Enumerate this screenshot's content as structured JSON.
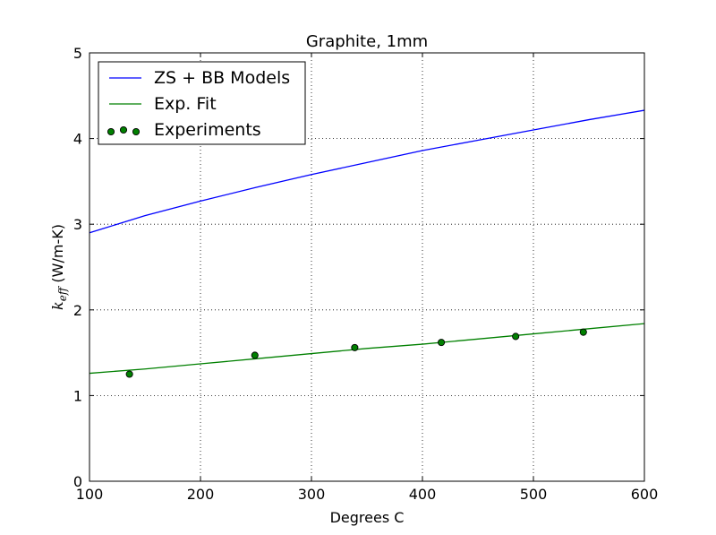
{
  "chart_data": {
    "type": "line",
    "title": "Graphite, 1mm",
    "xlabel": "Degrees C",
    "ylabel_symbol": "k",
    "ylabel_subscript": "eff",
    "ylabel_units": " (W/m-K)",
    "xlim": [
      100,
      600
    ],
    "ylim": [
      0,
      5
    ],
    "x_ticks": [
      100,
      200,
      300,
      400,
      500,
      600
    ],
    "y_ticks": [
      0,
      1,
      2,
      3,
      4,
      5
    ],
    "grid": true,
    "legend_position": "top-left",
    "series": [
      {
        "name": "ZS + BB Models",
        "kind": "line",
        "color": "#0000ff",
        "x": [
          100,
          150,
          200,
          250,
          300,
          350,
          400,
          450,
          500,
          550,
          600
        ],
        "y": [
          2.9,
          3.1,
          3.27,
          3.43,
          3.58,
          3.72,
          3.86,
          3.98,
          4.1,
          4.22,
          4.33
        ]
      },
      {
        "name": "Exp. Fit",
        "kind": "line",
        "color": "#008000",
        "x": [
          100,
          150,
          200,
          250,
          300,
          350,
          400,
          450,
          500,
          550,
          600
        ],
        "y": [
          1.26,
          1.31,
          1.37,
          1.43,
          1.49,
          1.55,
          1.6,
          1.66,
          1.72,
          1.78,
          1.84
        ]
      },
      {
        "name": "Experiments",
        "kind": "scatter",
        "color": "#008000",
        "x": [
          136,
          249,
          339,
          417,
          484,
          545
        ],
        "y": [
          1.25,
          1.47,
          1.56,
          1.62,
          1.69,
          1.74
        ]
      }
    ]
  }
}
